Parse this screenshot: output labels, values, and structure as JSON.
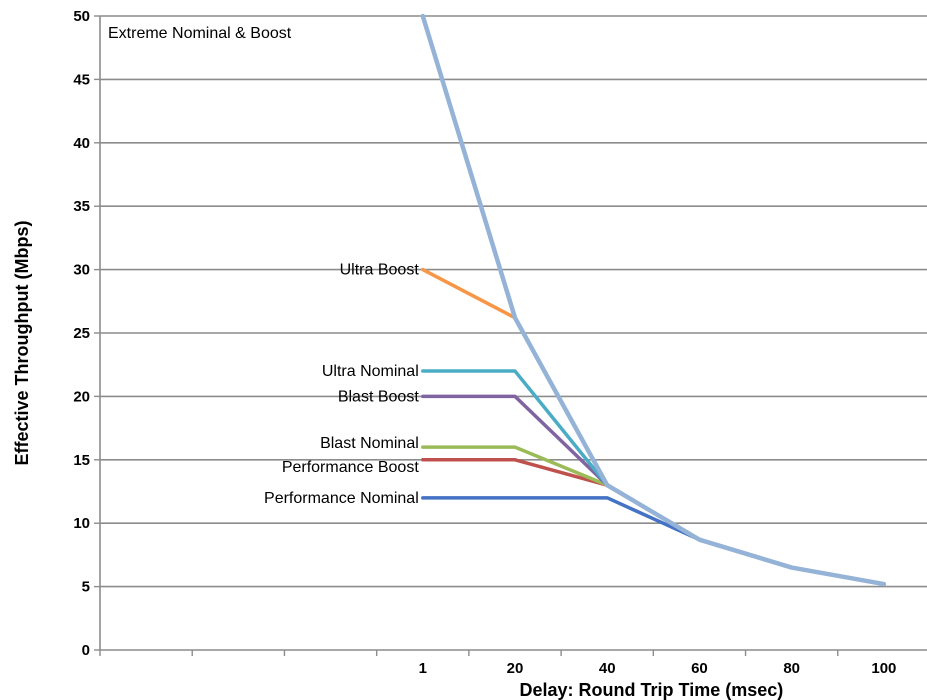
{
  "chart_data": {
    "type": "line",
    "xlabel": "Delay: Round Trip Time (msec)",
    "ylabel": "Effective Throughput (Mbps)",
    "ylim": [
      0,
      50
    ],
    "y_ticks": [
      "0",
      "5",
      "10",
      "15",
      "20",
      "25",
      "30",
      "35",
      "40",
      "45",
      "50"
    ],
    "x_categories": [
      "",
      "",
      "",
      "1",
      "20",
      "40",
      "60",
      "80",
      "100"
    ],
    "grid": "horizontal",
    "series": [
      {
        "name": "Performance Nominal",
        "color": "#4472c4",
        "x": [
          "1",
          "20",
          "40",
          "60",
          "80",
          "100"
        ],
        "values": [
          12,
          12,
          12,
          8.7,
          6.5,
          5.2
        ]
      },
      {
        "name": "Performance Boost",
        "color": "#c0504d",
        "x": [
          "1",
          "20",
          "40",
          "60",
          "80",
          "100"
        ],
        "values": [
          15,
          15,
          13,
          8.7,
          6.5,
          5.2
        ]
      },
      {
        "name": "Blast Nominal",
        "color": "#9bbb59",
        "x": [
          "1",
          "20",
          "40",
          "60",
          "80",
          "100"
        ],
        "values": [
          16,
          16,
          13,
          8.7,
          6.5,
          5.2
        ]
      },
      {
        "name": "Blast Boost",
        "color": "#8064a2",
        "x": [
          "1",
          "20",
          "40",
          "60",
          "80",
          "100"
        ],
        "values": [
          20,
          20,
          13,
          8.7,
          6.5,
          5.2
        ]
      },
      {
        "name": "Ultra Nominal",
        "color": "#4bacc6",
        "x": [
          "1",
          "20",
          "40",
          "60",
          "80",
          "100"
        ],
        "values": [
          22,
          22,
          13,
          8.7,
          6.5,
          5.2
        ]
      },
      {
        "name": "Ultra Boost",
        "color": "#f79646",
        "x": [
          "1",
          "20",
          "40",
          "60",
          "80",
          "100"
        ],
        "values": [
          30,
          26.2,
          13,
          8.7,
          6.5,
          5.2
        ]
      },
      {
        "name": "Extreme Nominal & Boost",
        "color": "#95b3d7",
        "x": [
          "1",
          "20",
          "40",
          "60",
          "80",
          "100"
        ],
        "values": [
          50,
          26.2,
          13,
          8.7,
          6.5,
          5.2
        ]
      }
    ]
  }
}
